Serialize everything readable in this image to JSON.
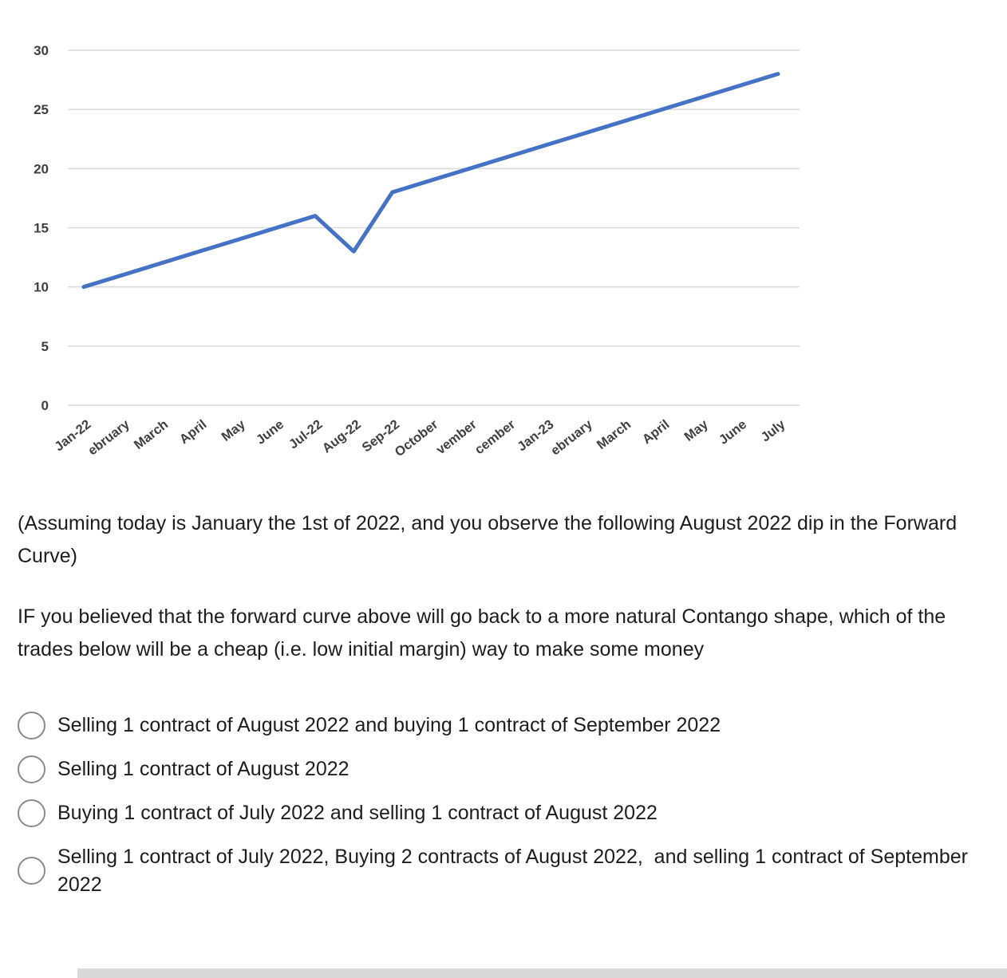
{
  "chart_data": {
    "type": "line",
    "title": "",
    "xlabel": "",
    "ylabel": "",
    "categories": [
      "Jan-22",
      "ebruary",
      "March",
      "April",
      "May",
      "June",
      "Jul-22",
      "Aug-22",
      "Sep-22",
      "October",
      "vember",
      "cember",
      "Jan-23",
      "ebruary",
      "March",
      "April",
      "May",
      "June",
      "July"
    ],
    "values": [
      10,
      11,
      12,
      13,
      14,
      15,
      16,
      13,
      18,
      19,
      20,
      21,
      22,
      23,
      24,
      25,
      26,
      27,
      28
    ],
    "ylim": [
      0,
      30
    ],
    "ytick_step": 5,
    "grid": true,
    "legend": false,
    "line_color": "#4472C4",
    "grid_color": "#d9d9d9",
    "label_color": "#3f3f3f"
  },
  "question": {
    "context": "(Assuming today is January the 1st of 2022, and you observe the following August 2022 dip in the Forward Curve)",
    "prompt": "IF you believed that the forward curve above will go back to a more natural Contango shape, which of the trades below will be a cheap (i.e. low initial margin) way to make some money",
    "options": [
      {
        "label": "Selling 1 contract of August 2022 and buying 1 contract of September 2022",
        "selected": false
      },
      {
        "label": "Selling 1 contract of August 2022",
        "selected": false
      },
      {
        "label": "Buying 1 contract of July 2022 and selling 1 contract of August 2022",
        "selected": false
      },
      {
        "label": "Selling 1 contract of July 2022, Buying 2 contracts of August 2022,  and selling 1 contract of September 2022",
        "selected": false
      }
    ]
  }
}
